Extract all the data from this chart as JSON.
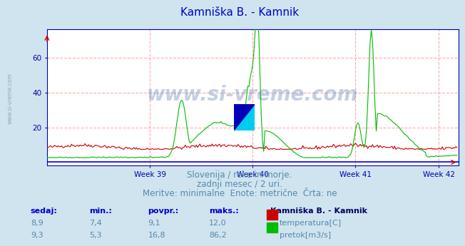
{
  "title": "Kamniška B. - Kamnik",
  "title_color": "#0000cc",
  "bg_color": "#d0e4f0",
  "plot_bg_color": "#ffffff",
  "grid_color": "#ffaaaa",
  "axis_color": "#0000aa",
  "xlabel_ticks": [
    "Week 39",
    "Week 40",
    "Week 41",
    "Week 42"
  ],
  "yticks": [
    0,
    20,
    40,
    60
  ],
  "ylim": [
    -2,
    76
  ],
  "xlim": [
    0,
    336
  ],
  "temp_color": "#cc0000",
  "flow_color": "#00bb00",
  "blue_baseline_color": "#0000ff",
  "watermark_text": "www.si-vreme.com",
  "watermark_color": "#3366aa",
  "watermark_alpha": 0.3,
  "subtitle_lines": [
    "Slovenija / reke in morje.",
    "zadnji mesec / 2 uri.",
    "Meritve: minimalne  Enote: metrične  Črta: ne"
  ],
  "subtitle_color": "#5588aa",
  "subtitle_fontsize": 8.5,
  "table_headers": [
    "sedaj:",
    "min.:",
    "povpr.:",
    "maks.:"
  ],
  "table_header_color": "#0000cc",
  "table_values_temp": [
    "8,9",
    "7,4",
    "9,1",
    "12,0"
  ],
  "table_values_flow": [
    "9,3",
    "5,3",
    "16,8",
    "86,2"
  ],
  "table_color": "#5588aa",
  "legend_title": "Kamniška B. - Kamnik",
  "legend_title_color": "#000066",
  "legend_temp_label": "temperatura[C]",
  "legend_flow_label": "pretok[m3/s]",
  "left_label": "www.si-vreme.com",
  "left_label_color": "#8899aa",
  "n_points": 336
}
